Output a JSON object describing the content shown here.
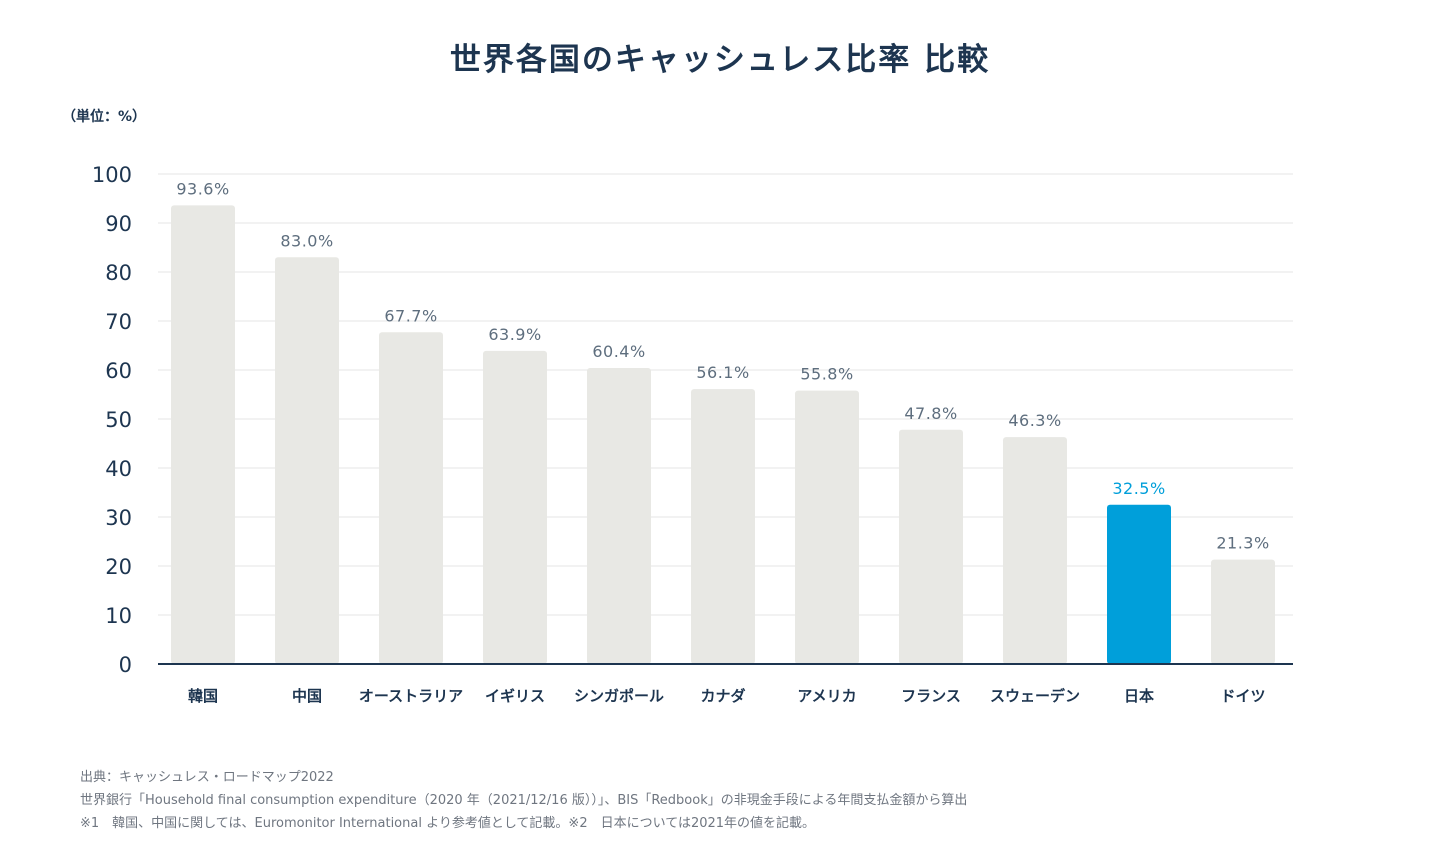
{
  "title": "世界各国のキャッシュレス比率 比較",
  "unit": "（単位：%）",
  "colors": {
    "bar_default": "#e8e8e4",
    "bar_highlight": "#009fda",
    "label_default": "#5e6e7e",
    "label_highlight": "#009fda",
    "grid": "#e6e6e6",
    "axis": "#1d3550"
  },
  "chart_data": {
    "type": "bar",
    "title": "世界各国のキャッシュレス比率 比較",
    "xlabel": "",
    "ylabel": "（単位：%）",
    "ylim": [
      0,
      100
    ],
    "yticks": [
      "0",
      "10",
      "20",
      "30",
      "40",
      "50",
      "60",
      "70",
      "80",
      "90",
      "100"
    ],
    "grid": true,
    "categories": [
      "韓国",
      "中国",
      "オーストラリア",
      "イギリス",
      "シンガポール",
      "カナダ",
      "アメリカ",
      "フランス",
      "スウェーデン",
      "日本",
      "ドイツ"
    ],
    "values": [
      93.6,
      83.0,
      67.7,
      63.9,
      60.4,
      56.1,
      55.8,
      47.8,
      46.3,
      32.5,
      21.3
    ],
    "value_labels": [
      "93.6%",
      "83.0%",
      "67.7%",
      "63.9%",
      "60.4%",
      "56.1%",
      "55.8%",
      "47.8%",
      "46.3%",
      "32.5%",
      "21.3%"
    ],
    "highlight": "日本"
  },
  "footnotes": {
    "source": "出典：キャッシュレス・ロードマップ2022",
    "line2": "世界銀行「Household final consumption expenditure（2020 年（2021/12/16 版））」、BIS「Redbook」の非現金手段による年間支払金額から算出",
    "line3": "※1　韓国、中国に関しては、Euromonitor International より参考値として記載。※2　日本については2021年の値を記載。"
  }
}
